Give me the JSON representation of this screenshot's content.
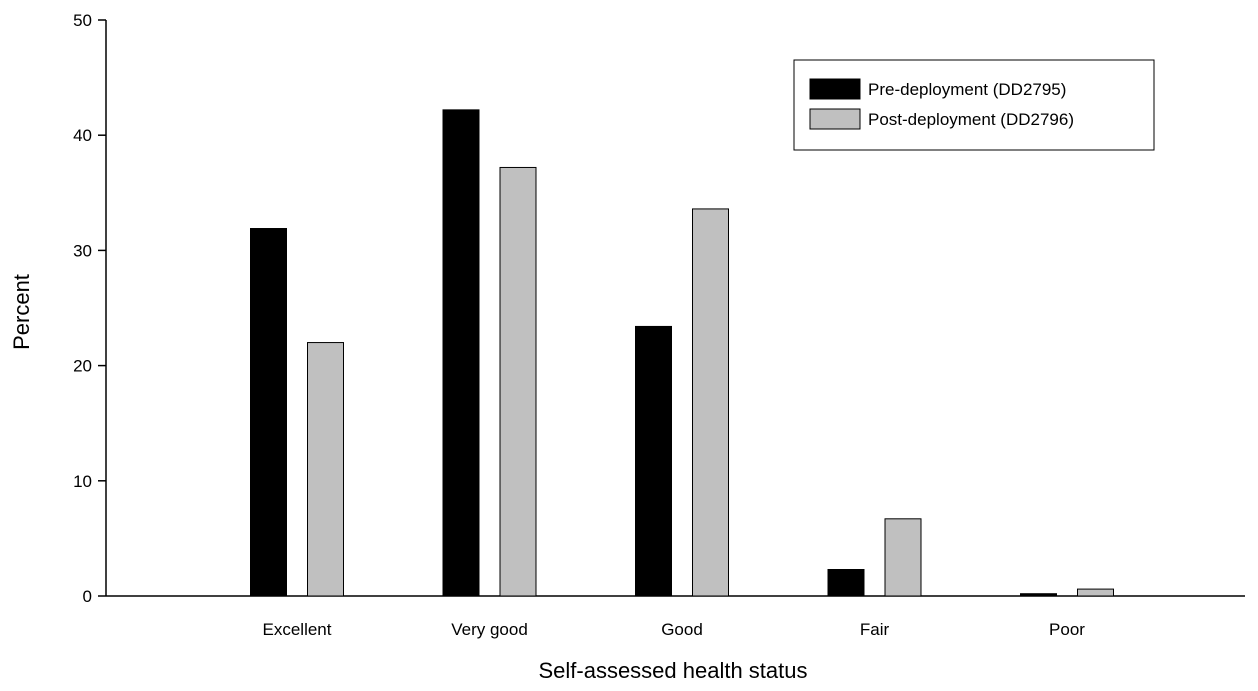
{
  "chart_data": {
    "type": "bar",
    "categories": [
      "Excellent",
      "Very good",
      "Good",
      "Fair",
      "Poor"
    ],
    "series": [
      {
        "name": "Pre-deployment (DD2795)",
        "color": "#000000",
        "values": [
          31.9,
          42.2,
          23.4,
          2.3,
          0.2
        ]
      },
      {
        "name": "Post-deployment (DD2796)",
        "color": "#c0c0c0",
        "values": [
          22.0,
          37.2,
          33.6,
          6.7,
          0.6
        ]
      }
    ],
    "xlabel": "Self-assessed health status",
    "ylabel": "Percent",
    "ylim": [
      0,
      50
    ],
    "yticks": [
      0,
      10,
      20,
      30,
      40,
      50
    ],
    "grid": false,
    "legend_position": "top-right"
  }
}
